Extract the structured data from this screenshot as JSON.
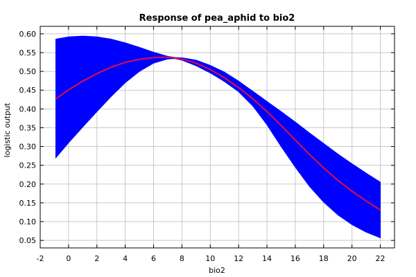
{
  "chart_data": {
    "type": "line",
    "title": "Response of pea_aphid to bio2",
    "xlabel": "bio2",
    "ylabel": "logistic output",
    "xlim": [
      -2,
      23
    ],
    "ylim": [
      0.03,
      0.62
    ],
    "x_ticks": [
      -2,
      0,
      2,
      4,
      6,
      8,
      10,
      12,
      14,
      16,
      18,
      20,
      22
    ],
    "y_ticks": [
      0.05,
      0.1,
      0.15,
      0.2,
      0.25,
      0.3,
      0.35,
      0.4,
      0.45,
      0.5,
      0.55,
      0.6
    ],
    "y_tick_labels": [
      "0.05",
      "0.10",
      "0.15",
      "0.20",
      "0.25",
      "0.30",
      "0.35",
      "0.40",
      "0.45",
      "0.50",
      "0.55",
      "0.60"
    ],
    "grid": true,
    "series": [
      {
        "kind": "mean",
        "color": "#e0103c",
        "x": [
          -0.9,
          0,
          1,
          2,
          3,
          4,
          5,
          6,
          7,
          8,
          9,
          10,
          11,
          12,
          13,
          14,
          15,
          16,
          17,
          18,
          19,
          20,
          21,
          22
        ],
        "y": [
          0.427,
          0.451,
          0.474,
          0.494,
          0.511,
          0.524,
          0.532,
          0.537,
          0.538,
          0.533,
          0.522,
          0.505,
          0.483,
          0.457,
          0.427,
          0.393,
          0.356,
          0.317,
          0.279,
          0.243,
          0.21,
          0.181,
          0.155,
          0.131
        ]
      },
      {
        "kind": "range",
        "color": "#0000ff",
        "x": [
          -0.9,
          0,
          1,
          2,
          3,
          4,
          5,
          6,
          7,
          7.5,
          8,
          9,
          10,
          11,
          12,
          13,
          14,
          15,
          16,
          17,
          18,
          19,
          20,
          21,
          22
        ],
        "upper": [
          0.586,
          0.592,
          0.594,
          0.592,
          0.586,
          0.576,
          0.564,
          0.551,
          0.54,
          0.537,
          0.536,
          0.53,
          0.516,
          0.498,
          0.474,
          0.447,
          0.42,
          0.393,
          0.365,
          0.336,
          0.308,
          0.28,
          0.254,
          0.229,
          0.205
        ],
        "lower": [
          0.27,
          0.31,
          0.352,
          0.393,
          0.433,
          0.47,
          0.5,
          0.522,
          0.533,
          0.534,
          0.53,
          0.515,
          0.496,
          0.473,
          0.446,
          0.408,
          0.358,
          0.3,
          0.245,
          0.194,
          0.152,
          0.118,
          0.092,
          0.072,
          0.057
        ]
      }
    ]
  }
}
